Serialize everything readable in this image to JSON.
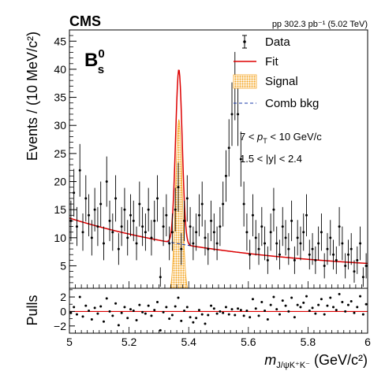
{
  "chart_data": [
    {
      "type": "scatter",
      "experiment_label": "CMS",
      "luminosity_label": "pp 302.3 pb⁻¹ (5.02 TeV)",
      "particle_label": "B",
      "particle_sup": "0",
      "particle_sub": "s",
      "xlabel_main": "m",
      "xlabel_sub": "J/ψK⁺K⁻",
      "xlabel_unit": " (GeV/c²)",
      "ylabel": "Events / (10 MeV/c²)",
      "xlim": [
        5.0,
        6.0
      ],
      "ylim": [
        1.0,
        47.0
      ],
      "x_ticks": [
        5.0,
        5.2,
        5.4,
        5.6,
        5.8,
        6.0
      ],
      "x_tick_labels": [
        "5",
        "5.2",
        "5.4",
        "5.6",
        "5.8",
        "6"
      ],
      "y_ticks": [
        5,
        10,
        15,
        20,
        25,
        30,
        35,
        40,
        45
      ],
      "y_tick_labels": [
        "5",
        "10",
        "15",
        "20",
        "25",
        "30",
        "35",
        "40",
        "45"
      ],
      "legend_position": "top-right",
      "legend": [
        {
          "label": "Data",
          "style": "errorbar-point"
        },
        {
          "label": "Fit",
          "style": "line",
          "color": "#dd0000"
        },
        {
          "label": "Signal",
          "style": "hatched-fill",
          "color": "#f5a623"
        },
        {
          "label": "Comb bkg",
          "style": "dashed-line",
          "color": "#1a3aa8"
        }
      ],
      "annotations": [
        {
          "part1": "7 < ",
          "var": "p",
          "sub": "T",
          "part2": " < 10 GeV/c"
        },
        {
          "text": "1.5 < |y| < 2.4"
        }
      ],
      "series": [
        {
          "name": "Data",
          "x_start": 5.005,
          "x_step": 0.01,
          "values": [
            13,
            18,
            12,
            22,
            11,
            17,
            14,
            10,
            15,
            12,
            16,
            9,
            20,
            13,
            11,
            17,
            8,
            12,
            15,
            10,
            14,
            13,
            9,
            16,
            12,
            11,
            15,
            10,
            13,
            17,
            3,
            12,
            14,
            9,
            11,
            15,
            19,
            8,
            13,
            17,
            12,
            9,
            11,
            14,
            16,
            10,
            8,
            13,
            11,
            9,
            12,
            16,
            21,
            26,
            32,
            37,
            32,
            24,
            16,
            11,
            7,
            14,
            10,
            8,
            12,
            9,
            6,
            11,
            15,
            9,
            7,
            12,
            10,
            8,
            13,
            6,
            10,
            9,
            11,
            14,
            7,
            8,
            6,
            9,
            11,
            5,
            8,
            10,
            7,
            6,
            12,
            9,
            5,
            7,
            8,
            4,
            6,
            9,
            3,
            5
          ]
        },
        {
          "name": "Fit",
          "color": "#dd0000",
          "signal_mean": 5.367,
          "signal_sigma": 0.011,
          "signal_peak": 31.0,
          "bkg_start": 13.5,
          "bkg_end": 3.6,
          "bkg_slope": 1.3
        }
      ]
    },
    {
      "type": "scatter",
      "ylabel": "Pulls",
      "xlim": [
        5.0,
        6.0
      ],
      "ylim": [
        -3.0,
        3.2
      ],
      "y_ticks": [
        -2,
        0,
        2
      ],
      "y_tick_labels": [
        "−2",
        "0",
        "2"
      ],
      "series": [
        {
          "name": "Pulls",
          "x_start": 5.005,
          "x_step": 0.01,
          "values": [
            -0.2,
            0.6,
            -0.4,
            2.0,
            -0.7,
            0.8,
            0.1,
            -1.1,
            0.5,
            -0.3,
            0.7,
            -1.4,
            1.8,
            0.0,
            -0.6,
            1.1,
            -1.9,
            -0.2,
            0.6,
            -0.9,
            0.3,
            0.1,
            -1.2,
            0.9,
            -0.1,
            -0.3,
            0.8,
            -0.6,
            0.2,
            1.3,
            -2.6,
            -0.1,
            0.6,
            -1.0,
            -0.5,
            0.7,
            1.9,
            -1.3,
            0.1,
            0.6,
            -0.8,
            -1.5,
            -0.9,
            0.2,
            -0.4,
            -1.7,
            -0.5,
            0.8,
            0.4,
            -0.3,
            0.0,
            -0.2,
            0.6,
            -0.4,
            0.3,
            -0.5,
            0.4,
            0.2,
            -0.6,
            0.1,
            -0.8,
            1.7,
            0.4,
            -0.6,
            1.3,
            0.1,
            -1.1,
            0.9,
            2.0,
            0.3,
            -0.4,
            1.5,
            0.8,
            0.0,
            1.9,
            -0.8,
            0.9,
            0.6,
            1.2,
            2.1,
            0.1,
            0.5,
            -0.3,
            0.9,
            1.7,
            -0.4,
            0.8,
            1.9,
            0.6,
            0.2,
            2.4,
            1.3,
            0.0,
            0.9,
            1.4,
            -0.2,
            0.6,
            2.1,
            -0.4,
            1.0
          ]
        }
      ]
    }
  ]
}
